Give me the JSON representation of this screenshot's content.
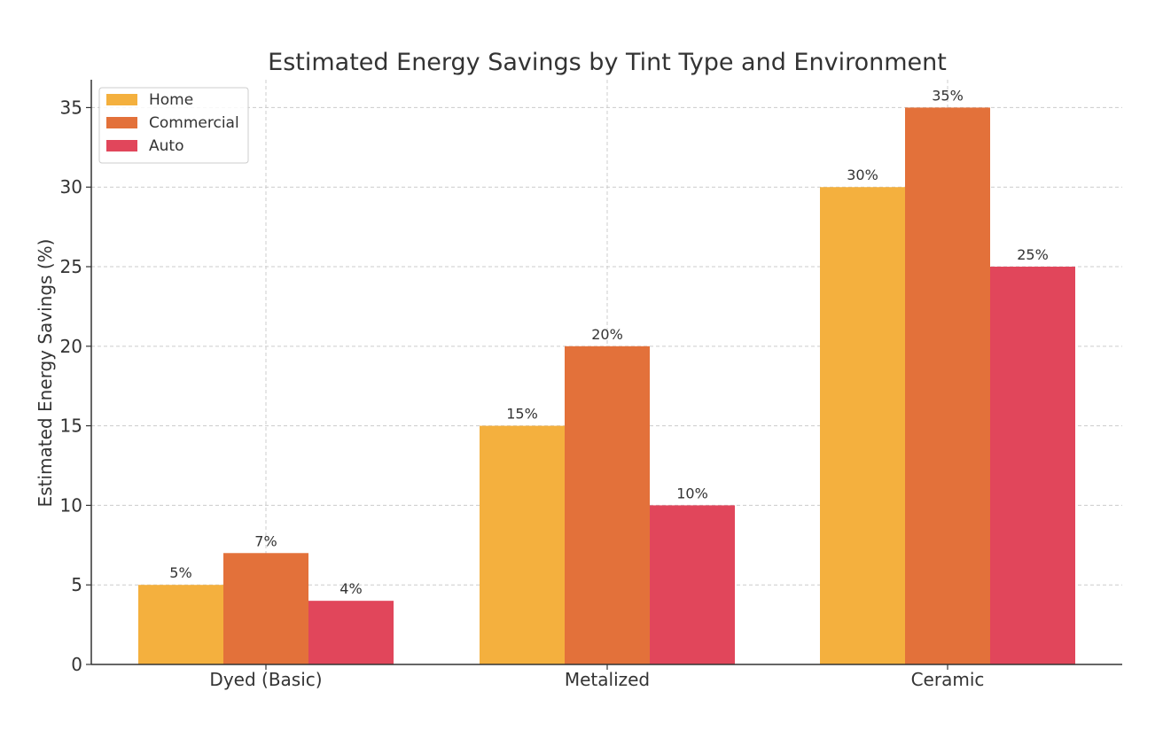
{
  "chart_data": {
    "type": "bar",
    "title": "Estimated Energy Savings by Tint Type and Environment",
    "xlabel": "",
    "ylabel": "Estimated Energy Savings (%)",
    "categories": [
      "Dyed (Basic)",
      "Metalized",
      "Ceramic"
    ],
    "series": [
      {
        "name": "Home",
        "values": [
          5,
          15,
          30
        ],
        "labels": [
          "5%",
          "15%",
          "30%"
        ],
        "color": "#F4B03E"
      },
      {
        "name": "Commercial",
        "values": [
          7,
          20,
          35
        ],
        "labels": [
          "7%",
          "20%",
          "35%"
        ],
        "color": "#E3713A"
      },
      {
        "name": "Auto",
        "values": [
          4,
          10,
          25
        ],
        "labels": [
          "4%",
          "10%",
          "25%"
        ],
        "color": "#E1465B"
      }
    ],
    "ylim": [
      0,
      36.75
    ],
    "yticks": [
      "0",
      "5",
      "10",
      "15",
      "20",
      "25",
      "30",
      "35"
    ],
    "grid": true,
    "legend_position": "top-left"
  }
}
